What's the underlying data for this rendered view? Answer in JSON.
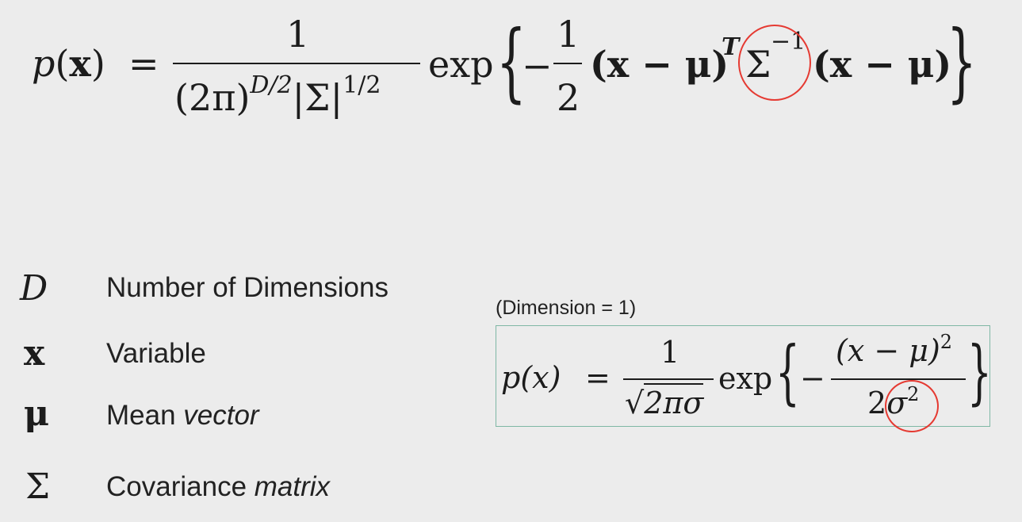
{
  "main_formula": {
    "lhs_p": "p",
    "lhs_open": "(",
    "lhs_x": "x",
    "lhs_close": ")",
    "equals": "=",
    "numerator": "1",
    "den_paren": "(2π)",
    "den_exp": "D/2",
    "den_det": "|Σ|",
    "den_det_exp": "1/2",
    "exp_label": "exp",
    "open_brace": "{",
    "minus": "−",
    "half_num": "1",
    "half_den": "2",
    "term1": "(x − μ)",
    "term1_exp": "T",
    "sigma": "Σ",
    "sigma_exp": "−1",
    "term2": "(x − μ)",
    "close_brace": "}"
  },
  "legend": [
    {
      "symbol": "D",
      "description": "Number of Dimensions"
    },
    {
      "symbol": "x",
      "description": "Variable"
    },
    {
      "symbol": "μ",
      "description_plain": "Mean ",
      "description_italic": "vector"
    },
    {
      "symbol": "Σ",
      "description_plain": "Covariance ",
      "description_italic": "matrix"
    }
  ],
  "one_d": {
    "label": "(Dimension = 1)",
    "lhs": "p(x)",
    "equals": "=",
    "numerator": "1",
    "den_sqrt": "√",
    "den_radicand": "2πσ",
    "exp_label": "exp",
    "open_brace": "{",
    "minus": "−",
    "inner_num": "(x − μ)",
    "inner_num_exp": "2",
    "inner_den_coef": "2",
    "inner_den_sigma": "σ",
    "inner_den_exp": "2",
    "close_brace": "}"
  },
  "colors": {
    "background": "#ececec",
    "highlight_circle": "#e53a32",
    "box_border": "#7fb7a5"
  }
}
